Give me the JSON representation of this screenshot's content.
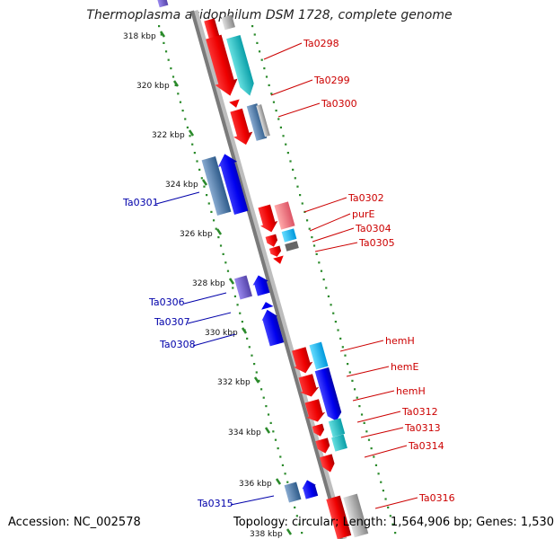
{
  "title": "Thermoplasma acidophilum DSM 1728, complete genome",
  "footer": {
    "accession": "Accession: NC_002578",
    "stats": "Topology: circular; Length: 1,564,906 bp; Genes: 1,530"
  },
  "colors": {
    "backbone": "#8a8a8a",
    "tick_line": "#2a8a2a",
    "forward_label": "#cc0000",
    "reverse_label": "#0000aa",
    "forward_gene": "#ee1111",
    "reverse_gene": "#1111ee"
  },
  "kbp_ticks": [
    "318 kbp",
    "320 kbp",
    "322 kbp",
    "324 kbp",
    "326 kbp",
    "328 kbp",
    "330 kbp",
    "332 kbp",
    "334 kbp",
    "336 kbp",
    "338 kbp"
  ],
  "forward_labels": [
    "Ta0298",
    "Ta0299",
    "Ta0300",
    "Ta0302",
    "purE",
    "Ta0304",
    "Ta0305",
    "hemH",
    "hemE",
    "hemH",
    "Ta0312",
    "Ta0313",
    "Ta0314",
    "Ta0316"
  ],
  "reverse_labels": [
    "Ta0301",
    "Ta0306",
    "Ta0307",
    "Ta0308",
    "Ta0315"
  ]
}
